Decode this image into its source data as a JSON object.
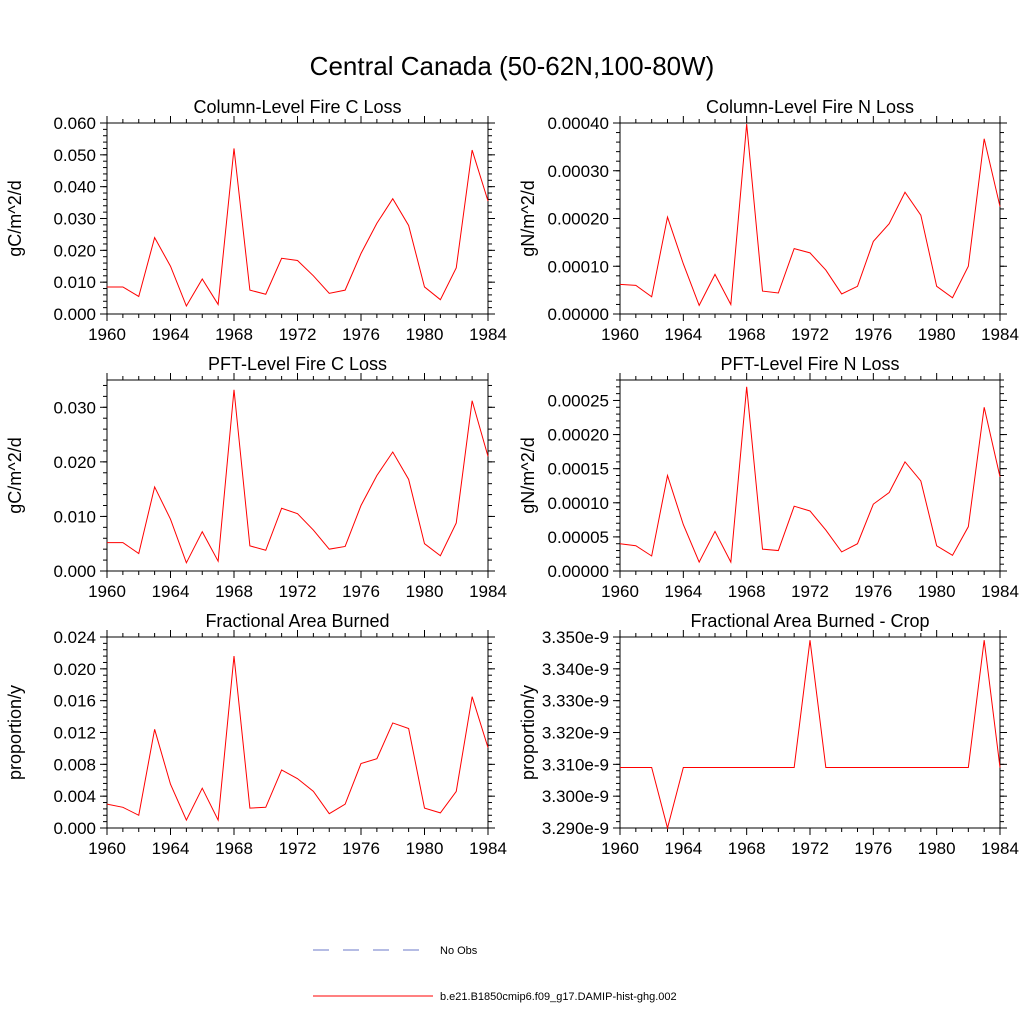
{
  "title": "Central Canada (50-62N,100-80W)",
  "legend": [
    {
      "label": "No Obs",
      "color": "#6b78c8",
      "dash": true
    },
    {
      "label": "b.e21.B1850cmip6.f09_g17.DAMIP-hist-ghg.002",
      "color": "#ff0000",
      "dash": false
    }
  ],
  "chart_data": [
    {
      "type": "line",
      "title": "Column-Level Fire C Loss",
      "ylabel": "gC/m^2/d",
      "xlim": [
        1960,
        1984
      ],
      "xticks": [
        "1960",
        "1964",
        "1968",
        "1972",
        "1976",
        "1980",
        "1984"
      ],
      "ylim": [
        0,
        0.06
      ],
      "yticks": [
        "0.000",
        "0.010",
        "0.020",
        "0.030",
        "0.040",
        "0.050",
        "0.060"
      ],
      "x": [
        1960,
        1961,
        1962,
        1963,
        1964,
        1965,
        1966,
        1967,
        1968,
        1969,
        1970,
        1971,
        1972,
        1973,
        1974,
        1975,
        1976,
        1977,
        1978,
        1979,
        1980,
        1981,
        1982,
        1983,
        1984
      ],
      "series": [
        {
          "color": "#ff0000",
          "values": [
            0.0085,
            0.0085,
            0.0055,
            0.024,
            0.015,
            0.0025,
            0.011,
            0.003,
            0.052,
            0.0075,
            0.0062,
            0.0175,
            0.0168,
            0.012,
            0.0065,
            0.0075,
            0.019,
            0.0285,
            0.0362,
            0.0278,
            0.0085,
            0.0045,
            0.0145,
            0.0515,
            0.0355
          ]
        }
      ]
    },
    {
      "type": "line",
      "title": "Column-Level Fire N Loss",
      "ylabel": "gN/m^2/d",
      "xlim": [
        1960,
        1984
      ],
      "xticks": [
        "1960",
        "1964",
        "1968",
        "1972",
        "1976",
        "1980",
        "1984"
      ],
      "ylim": [
        0,
        0.0004
      ],
      "yticks": [
        "0.00000",
        "0.00010",
        "0.00020",
        "0.00030",
        "0.00040"
      ],
      "x": [
        1960,
        1961,
        1962,
        1963,
        1964,
        1965,
        1966,
        1967,
        1968,
        1969,
        1970,
        1971,
        1972,
        1973,
        1974,
        1975,
        1976,
        1977,
        1978,
        1979,
        1980,
        1981,
        1982,
        1983,
        1984
      ],
      "series": [
        {
          "color": "#ff0000",
          "values": [
            6.2e-05,
            6e-05,
            3.6e-05,
            0.000203,
            0.000105,
            1.8e-05,
            8.3e-05,
            2e-05,
            0.000398,
            4.8e-05,
            4.4e-05,
            0.000137,
            0.000128,
            9.2e-05,
            4.2e-05,
            5.8e-05,
            0.000152,
            0.000189,
            0.000255,
            0.000207,
            5.8e-05,
            3.4e-05,
            0.0001,
            0.000367,
            0.000225
          ]
        }
      ]
    },
    {
      "type": "line",
      "title": "PFT-Level Fire C Loss",
      "ylabel": "gC/m^2/d",
      "xlim": [
        1960,
        1984
      ],
      "xticks": [
        "1960",
        "1964",
        "1968",
        "1972",
        "1976",
        "1980",
        "1984"
      ],
      "ylim": [
        0,
        0.035
      ],
      "yticks": [
        "0.000",
        "0.010",
        "0.020",
        "0.030"
      ],
      "ytick_values": [
        0,
        0.01,
        0.02,
        0.03
      ],
      "x": [
        1960,
        1961,
        1962,
        1963,
        1964,
        1965,
        1966,
        1967,
        1968,
        1969,
        1970,
        1971,
        1972,
        1973,
        1974,
        1975,
        1976,
        1977,
        1978,
        1979,
        1980,
        1981,
        1982,
        1983,
        1984
      ],
      "series": [
        {
          "color": "#ff0000",
          "values": [
            0.0052,
            0.0052,
            0.0032,
            0.0154,
            0.0095,
            0.0015,
            0.0072,
            0.0018,
            0.0332,
            0.0046,
            0.0038,
            0.0115,
            0.0105,
            0.0075,
            0.004,
            0.0045,
            0.012,
            0.0175,
            0.0218,
            0.0168,
            0.005,
            0.0028,
            0.0088,
            0.0312,
            0.021
          ]
        }
      ]
    },
    {
      "type": "line",
      "title": "PFT-Level Fire N Loss",
      "ylabel": "gN/m^2/d",
      "xlim": [
        1960,
        1984
      ],
      "xticks": [
        "1960",
        "1964",
        "1968",
        "1972",
        "1976",
        "1980",
        "1984"
      ],
      "ylim": [
        0,
        0.00028
      ],
      "yticks": [
        "0.00000",
        "0.00005",
        "0.00010",
        "0.00015",
        "0.00020",
        "0.00025"
      ],
      "ytick_values": [
        0,
        5e-05,
        0.0001,
        0.00015,
        0.0002,
        0.00025
      ],
      "x": [
        1960,
        1961,
        1962,
        1963,
        1964,
        1965,
        1966,
        1967,
        1968,
        1969,
        1970,
        1971,
        1972,
        1973,
        1974,
        1975,
        1976,
        1977,
        1978,
        1979,
        1980,
        1981,
        1982,
        1983,
        1984
      ],
      "series": [
        {
          "color": "#ff0000",
          "values": [
            4e-05,
            3.7e-05,
            2.2e-05,
            0.00014,
            6.8e-05,
            1.3e-05,
            5.8e-05,
            1.3e-05,
            0.00027,
            3.2e-05,
            3e-05,
            9.5e-05,
            8.8e-05,
            6e-05,
            2.8e-05,
            4e-05,
            9.8e-05,
            0.000115,
            0.00016,
            0.000132,
            3.7e-05,
            2.3e-05,
            6.5e-05,
            0.00024,
            0.000138
          ]
        }
      ]
    },
    {
      "type": "line",
      "title": "Fractional Area Burned",
      "ylabel": "proportion/y",
      "xlim": [
        1960,
        1984
      ],
      "xticks": [
        "1960",
        "1964",
        "1968",
        "1972",
        "1976",
        "1980",
        "1984"
      ],
      "ylim": [
        0,
        0.024
      ],
      "yticks": [
        "0.000",
        "0.004",
        "0.008",
        "0.012",
        "0.016",
        "0.020",
        "0.024"
      ],
      "x": [
        1960,
        1961,
        1962,
        1963,
        1964,
        1965,
        1966,
        1967,
        1968,
        1969,
        1970,
        1971,
        1972,
        1973,
        1974,
        1975,
        1976,
        1977,
        1978,
        1979,
        1980,
        1981,
        1982,
        1983,
        1984
      ],
      "series": [
        {
          "color": "#ff0000",
          "values": [
            0.003,
            0.0026,
            0.0016,
            0.0124,
            0.0055,
            0.001,
            0.005,
            0.001,
            0.0216,
            0.0025,
            0.0026,
            0.0073,
            0.0062,
            0.0046,
            0.0018,
            0.003,
            0.0081,
            0.0087,
            0.0132,
            0.0125,
            0.0025,
            0.0019,
            0.0046,
            0.0165,
            0.0101
          ]
        }
      ]
    },
    {
      "type": "line",
      "title": "Fractional Area Burned - Crop",
      "ylabel": "proportion/y",
      "xlim": [
        1960,
        1984
      ],
      "xticks": [
        "1960",
        "1964",
        "1968",
        "1972",
        "1976",
        "1980",
        "1984"
      ],
      "ylim": [
        3.29e-09,
        3.35e-09
      ],
      "yticks": [
        "3.290e-9",
        "3.300e-9",
        "3.310e-9",
        "3.320e-9",
        "3.330e-9",
        "3.340e-9",
        "3.350e-9"
      ],
      "x": [
        1960,
        1961,
        1962,
        1963,
        1964,
        1965,
        1966,
        1967,
        1968,
        1969,
        1970,
        1971,
        1972,
        1973,
        1974,
        1975,
        1976,
        1977,
        1978,
        1979,
        1980,
        1981,
        1982,
        1983,
        1984
      ],
      "series": [
        {
          "color": "#ff0000",
          "values": [
            3.309e-09,
            3.309e-09,
            3.309e-09,
            3.29e-09,
            3.309e-09,
            3.309e-09,
            3.309e-09,
            3.309e-09,
            3.309e-09,
            3.309e-09,
            3.309e-09,
            3.309e-09,
            3.349e-09,
            3.309e-09,
            3.309e-09,
            3.309e-09,
            3.309e-09,
            3.309e-09,
            3.309e-09,
            3.309e-09,
            3.309e-09,
            3.309e-09,
            3.309e-09,
            3.349e-09,
            3.309e-09
          ]
        }
      ]
    }
  ]
}
